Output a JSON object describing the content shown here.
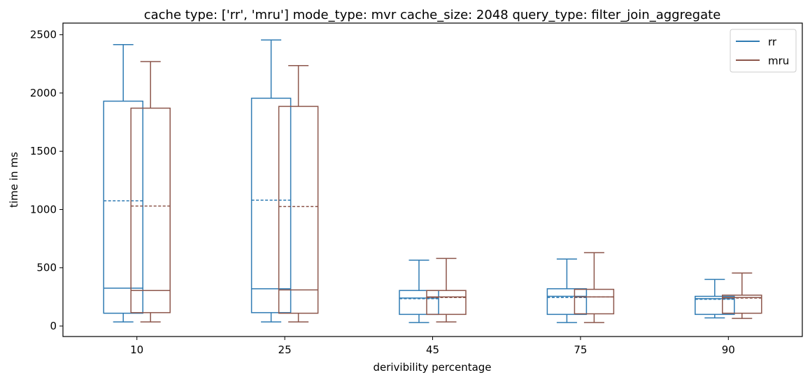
{
  "chart_data": {
    "type": "box",
    "title": "cache type: ['rr', 'mru'] mode_type: mvr cache_size: 2048 query_type: filter_join_aggregate",
    "xlabel": "derivibility percentage",
    "ylabel": "time in ms",
    "categories": [
      "10",
      "25",
      "45",
      "75",
      "90"
    ],
    "ylim": [
      -90,
      2600
    ],
    "yticks": [
      0,
      500,
      1000,
      1500,
      2000,
      2500
    ],
    "legend_position": "top-right",
    "grid": false,
    "series": [
      {
        "name": "rr",
        "color": "#2f7bb3",
        "boxes": [
          {
            "whisker_low": 35,
            "q1": 110,
            "median": 325,
            "q3": 1930,
            "whisker_high": 2415,
            "mean": 1075
          },
          {
            "whisker_low": 35,
            "q1": 115,
            "median": 320,
            "q3": 1955,
            "whisker_high": 2455,
            "mean": 1080
          },
          {
            "whisker_low": 30,
            "q1": 100,
            "median": 240,
            "q3": 305,
            "whisker_high": 565,
            "mean": 235
          },
          {
            "whisker_low": 30,
            "q1": 100,
            "median": 255,
            "q3": 320,
            "whisker_high": 575,
            "mean": 245
          },
          {
            "whisker_low": 70,
            "q1": 100,
            "median": 235,
            "q3": 255,
            "whisker_high": 400,
            "mean": 230
          }
        ]
      },
      {
        "name": "mru",
        "color": "#8c564b",
        "boxes": [
          {
            "whisker_low": 35,
            "q1": 115,
            "median": 305,
            "q3": 1870,
            "whisker_high": 2270,
            "mean": 1030
          },
          {
            "whisker_low": 35,
            "q1": 110,
            "median": 310,
            "q3": 1885,
            "whisker_high": 2235,
            "mean": 1025
          },
          {
            "whisker_low": 35,
            "q1": 100,
            "median": 250,
            "q3": 305,
            "whisker_high": 580,
            "mean": 245
          },
          {
            "whisker_low": 30,
            "q1": 105,
            "median": 250,
            "q3": 315,
            "whisker_high": 630,
            "mean": 250
          },
          {
            "whisker_low": 65,
            "q1": 110,
            "median": 245,
            "q3": 265,
            "whisker_high": 455,
            "mean": 240
          }
        ]
      }
    ]
  }
}
